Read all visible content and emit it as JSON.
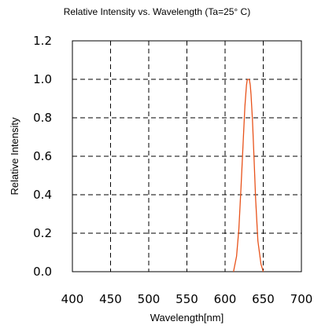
{
  "chart_data": {
    "type": "line",
    "title": "Relative Intensity vs. Wavelength (Ta=25° C)",
    "xlabel": "Wavelength[nm]",
    "ylabel": "Relative Intensity",
    "xlim": [
      400,
      700
    ],
    "ylim": [
      0,
      1.2
    ],
    "x_ticks": [
      400,
      450,
      500,
      550,
      600,
      650,
      700
    ],
    "x_tick_labels": [
      "400",
      "450",
      "500",
      "550",
      "600",
      "650",
      "700"
    ],
    "y_ticks": [
      0,
      0.2,
      0.4,
      0.6,
      0.8,
      1.0,
      1.2
    ],
    "y_tick_labels": [
      "0.0",
      "0.2",
      "0.4",
      "0.6",
      "0.8",
      "1.0",
      "1.2"
    ],
    "grid": true,
    "grid_style": "dashed",
    "series": [
      {
        "color": "#e8521a",
        "x": [
          611,
          615,
          618,
          621,
          624,
          626,
          628,
          629,
          630,
          631,
          632,
          633,
          634,
          636,
          638,
          640,
          643,
          647,
          650
        ],
        "y": [
          0.0,
          0.08,
          0.22,
          0.45,
          0.7,
          0.86,
          0.97,
          0.995,
          1.0,
          1.0,
          0.995,
          0.97,
          0.92,
          0.78,
          0.58,
          0.38,
          0.16,
          0.04,
          0.0
        ]
      }
    ]
  }
}
